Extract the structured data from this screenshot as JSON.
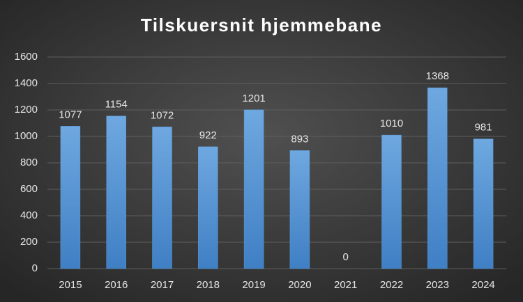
{
  "chart_data": {
    "type": "bar",
    "title": "Tilskuersnit hjemmebane",
    "categories": [
      "2015",
      "2016",
      "2017",
      "2018",
      "2019",
      "2020",
      "2021",
      "2022",
      "2023",
      "2024"
    ],
    "values": [
      1077,
      1154,
      1072,
      922,
      1201,
      893,
      0,
      1010,
      1368,
      981
    ],
    "color": "#5b9bd5",
    "ylim": [
      0,
      1600
    ],
    "yticks": [
      0,
      200,
      400,
      600,
      800,
      1000,
      1200,
      1400,
      1600
    ],
    "grid": true
  }
}
